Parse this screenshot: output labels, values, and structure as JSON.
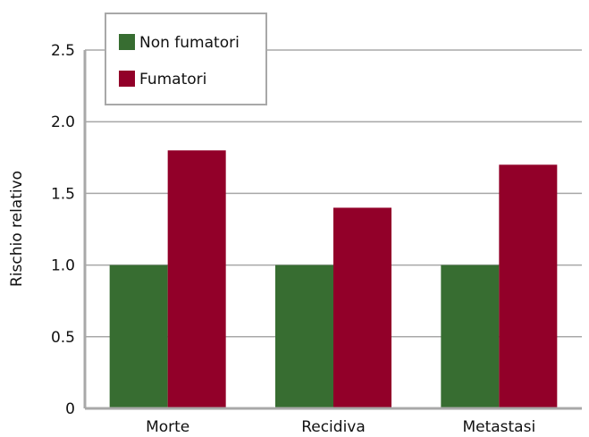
{
  "chart_data": {
    "type": "bar",
    "categories": [
      "Morte",
      "Recidiva",
      "Metastasi"
    ],
    "series": [
      {
        "name": "Non fumatori",
        "color": "#376d31",
        "values": [
          1.0,
          1.0,
          1.0
        ]
      },
      {
        "name": "Fumatori",
        "color": "#920029",
        "values": [
          1.8,
          1.4,
          1.7
        ]
      }
    ],
    "title": "",
    "xlabel": "",
    "ylabel": "Rischio relativo",
    "ylim": [
      0,
      2.5
    ],
    "yticks": [
      "0",
      "0.5",
      "1.0",
      "1.5",
      "2.0",
      "2.5"
    ],
    "ytick_values": [
      0,
      0.5,
      1.0,
      1.5,
      2.0,
      2.5
    ],
    "grid": true,
    "legend_position": "top-left"
  }
}
